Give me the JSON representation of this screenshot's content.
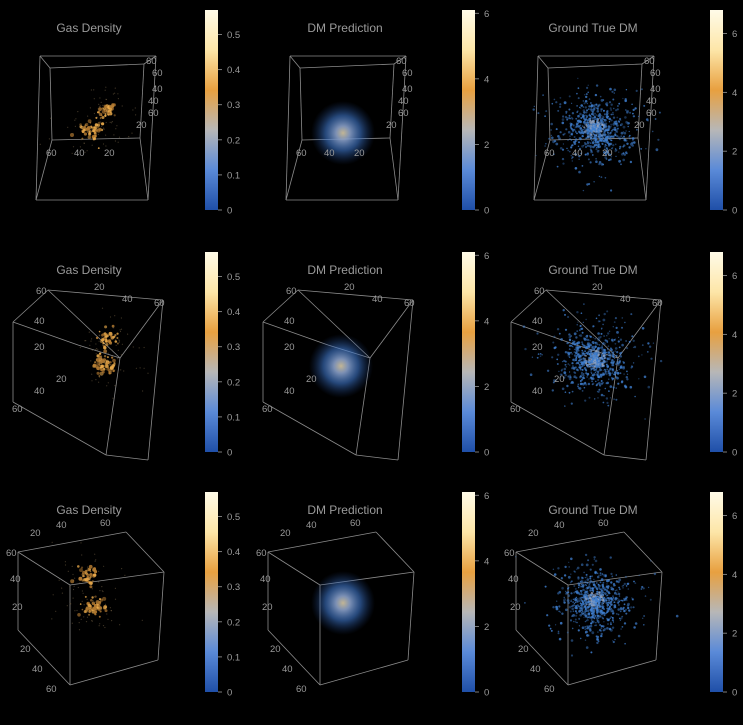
{
  "panel_titles": {
    "gas": "Gas Density",
    "pred": "DM Prediction",
    "truth": "Ground True DM"
  },
  "colors": {
    "background": "#000000",
    "box_edge": "#8c8c8c",
    "text": "#9a9a9a",
    "gas_point": "#e8a94a",
    "gas_point_dim": "#b07830",
    "dm_blue": "#3f7fd0",
    "dm_core": "#c9bfa0",
    "colormap_stops": [
      "#1f4fa8",
      "#5a8ad8",
      "#b7b7b7",
      "#e8a040",
      "#fde6a8",
      "#fffbe8"
    ]
  },
  "chart_data": [
    {
      "type": "scatter3d",
      "row": 0,
      "col": 0,
      "title": "Gas Density",
      "view": "top",
      "axis_ticks": [
        "60",
        "40",
        "20"
      ],
      "colorbar": {
        "min": 0,
        "max": 0.57,
        "ticks": [
          "0",
          "0.1",
          "0.2",
          "0.3",
          "0.4",
          "0.5"
        ]
      }
    },
    {
      "type": "volume3d",
      "row": 0,
      "col": 1,
      "title": "DM Prediction",
      "view": "top",
      "axis_ticks": [
        "60",
        "40",
        "20"
      ],
      "colorbar": {
        "min": 0,
        "max": 6.1,
        "ticks": [
          "0",
          "2",
          "4",
          "6"
        ]
      }
    },
    {
      "type": "scatter3d",
      "row": 0,
      "col": 2,
      "title": "Ground True DM",
      "view": "top",
      "axis_ticks": [
        "60",
        "40",
        "20"
      ],
      "colorbar": {
        "min": 0,
        "max": 6.8,
        "ticks": [
          "0",
          "2",
          "4",
          "6"
        ]
      }
    },
    {
      "type": "scatter3d",
      "row": 1,
      "col": 0,
      "title": "Gas Density",
      "view": "side",
      "axis_ticks": [
        "60",
        "40",
        "20"
      ],
      "colorbar": {
        "min": 0,
        "max": 0.57,
        "ticks": [
          "0",
          "0.1",
          "0.2",
          "0.3",
          "0.4",
          "0.5"
        ]
      }
    },
    {
      "type": "volume3d",
      "row": 1,
      "col": 1,
      "title": "DM Prediction",
      "view": "side",
      "axis_ticks": [
        "60",
        "40",
        "20"
      ],
      "colorbar": {
        "min": 0,
        "max": 6.1,
        "ticks": [
          "0",
          "2",
          "4",
          "6"
        ]
      }
    },
    {
      "type": "scatter3d",
      "row": 1,
      "col": 2,
      "title": "Ground True DM",
      "view": "side",
      "axis_ticks": [
        "60",
        "40",
        "20"
      ],
      "colorbar": {
        "min": 0,
        "max": 6.8,
        "ticks": [
          "0",
          "2",
          "4",
          "6"
        ]
      }
    },
    {
      "type": "scatter3d",
      "row": 2,
      "col": 0,
      "title": "Gas Density",
      "view": "oblique",
      "axis_ticks": [
        "60",
        "40",
        "20"
      ],
      "colorbar": {
        "min": 0,
        "max": 0.57,
        "ticks": [
          "0",
          "0.1",
          "0.2",
          "0.3",
          "0.4",
          "0.5"
        ]
      }
    },
    {
      "type": "volume3d",
      "row": 2,
      "col": 1,
      "title": "DM Prediction",
      "view": "oblique",
      "axis_ticks": [
        "60",
        "40",
        "20"
      ],
      "colorbar": {
        "min": 0,
        "max": 6.1,
        "ticks": [
          "0",
          "2",
          "4",
          "6"
        ]
      }
    },
    {
      "type": "scatter3d",
      "row": 2,
      "col": 2,
      "title": "Ground True DM",
      "view": "oblique",
      "axis_ticks": [
        "60",
        "40",
        "20"
      ],
      "colorbar": {
        "min": 0,
        "max": 6.8,
        "ticks": [
          "0",
          "2",
          "4",
          "6"
        ]
      }
    }
  ]
}
